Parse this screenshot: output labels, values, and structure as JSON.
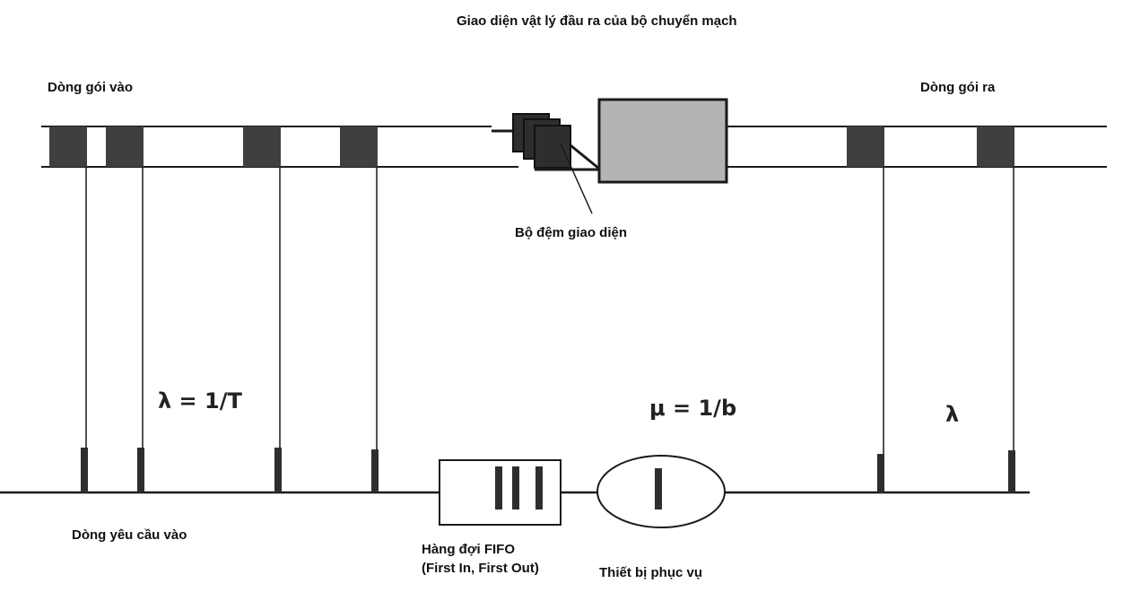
{
  "labels": {
    "switch_output_interface": "Giao diện vật lý đầu ra của bộ chuyển mạch",
    "incoming_packet_stream": "Dòng gói vào",
    "outgoing_packet_stream": "Dòng gói ra",
    "interface_buffer": "Bộ đệm giao diện",
    "incoming_request_stream": "Dòng yêu cầu vào",
    "fifo_queue": "Hàng đợi FIFO\n(First In, First Out)",
    "server": "Thiết bị phục vụ"
  },
  "symbols": {
    "arrival_rate": "λ = 1/T",
    "service_rate": "μ = 1/b",
    "departure_rate": "λ"
  },
  "colors": {
    "packet": "#3f3f3f",
    "switch_box": "#b4b4b4",
    "line": "#1a1a1a"
  },
  "counts": {
    "incoming_packets": 4,
    "outgoing_packets": 2,
    "queued_requests": 3
  }
}
